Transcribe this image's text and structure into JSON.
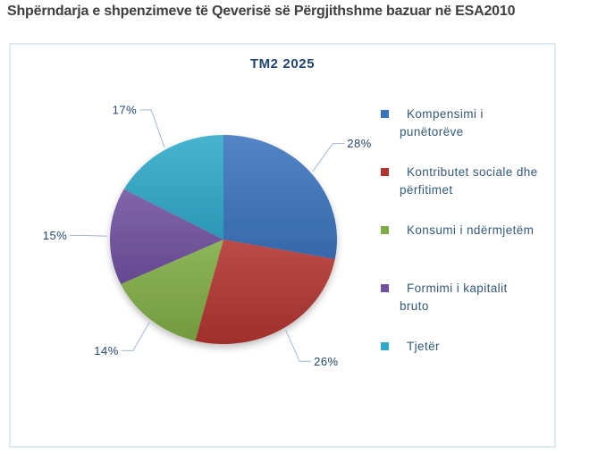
{
  "page": {
    "title": "Shpërndarja e shpenzimeve të Qeverisë së Përgjithshme bazuar në ESA2010"
  },
  "chart_data": {
    "type": "pie",
    "title": "TM2 2025",
    "categories": [
      "Kompensimi i punëtorëve",
      "Kontributet sociale dhe përfitimet",
      "Konsumi i ndërmjetëm",
      "Formimi i kapitalit bruto",
      "Tjetër"
    ],
    "values": [
      28,
      26,
      14,
      15,
      17
    ],
    "unit": "%",
    "labels": [
      "28%",
      "26%",
      "14%",
      "15%",
      "17%"
    ],
    "colors": [
      "#3B73BE",
      "#B23330",
      "#7FAB44",
      "#7050A0",
      "#2FA9C9"
    ],
    "legend_lines": [
      [
        "Kompensimi i",
        "punëtorëve"
      ],
      [
        "Kontributet sociale dhe",
        "përfitimet"
      ],
      [
        "Konsumi i ndërmjetëm"
      ],
      [
        "Formimi i kapitalit",
        "bruto"
      ],
      [
        "Tjetër"
      ]
    ],
    "legend_position": "right",
    "start_angle_deg": 0,
    "direction": "clockwise"
  },
  "colors": {
    "background": "#FFFFFF",
    "page_title_text": "#3F3F3F",
    "chart_title_text": "#1F4472",
    "data_label_text": "#24466E",
    "legend_text": "#33587A",
    "leader_line": "#A0B8D8",
    "chart_border": "#DFE9EE"
  }
}
